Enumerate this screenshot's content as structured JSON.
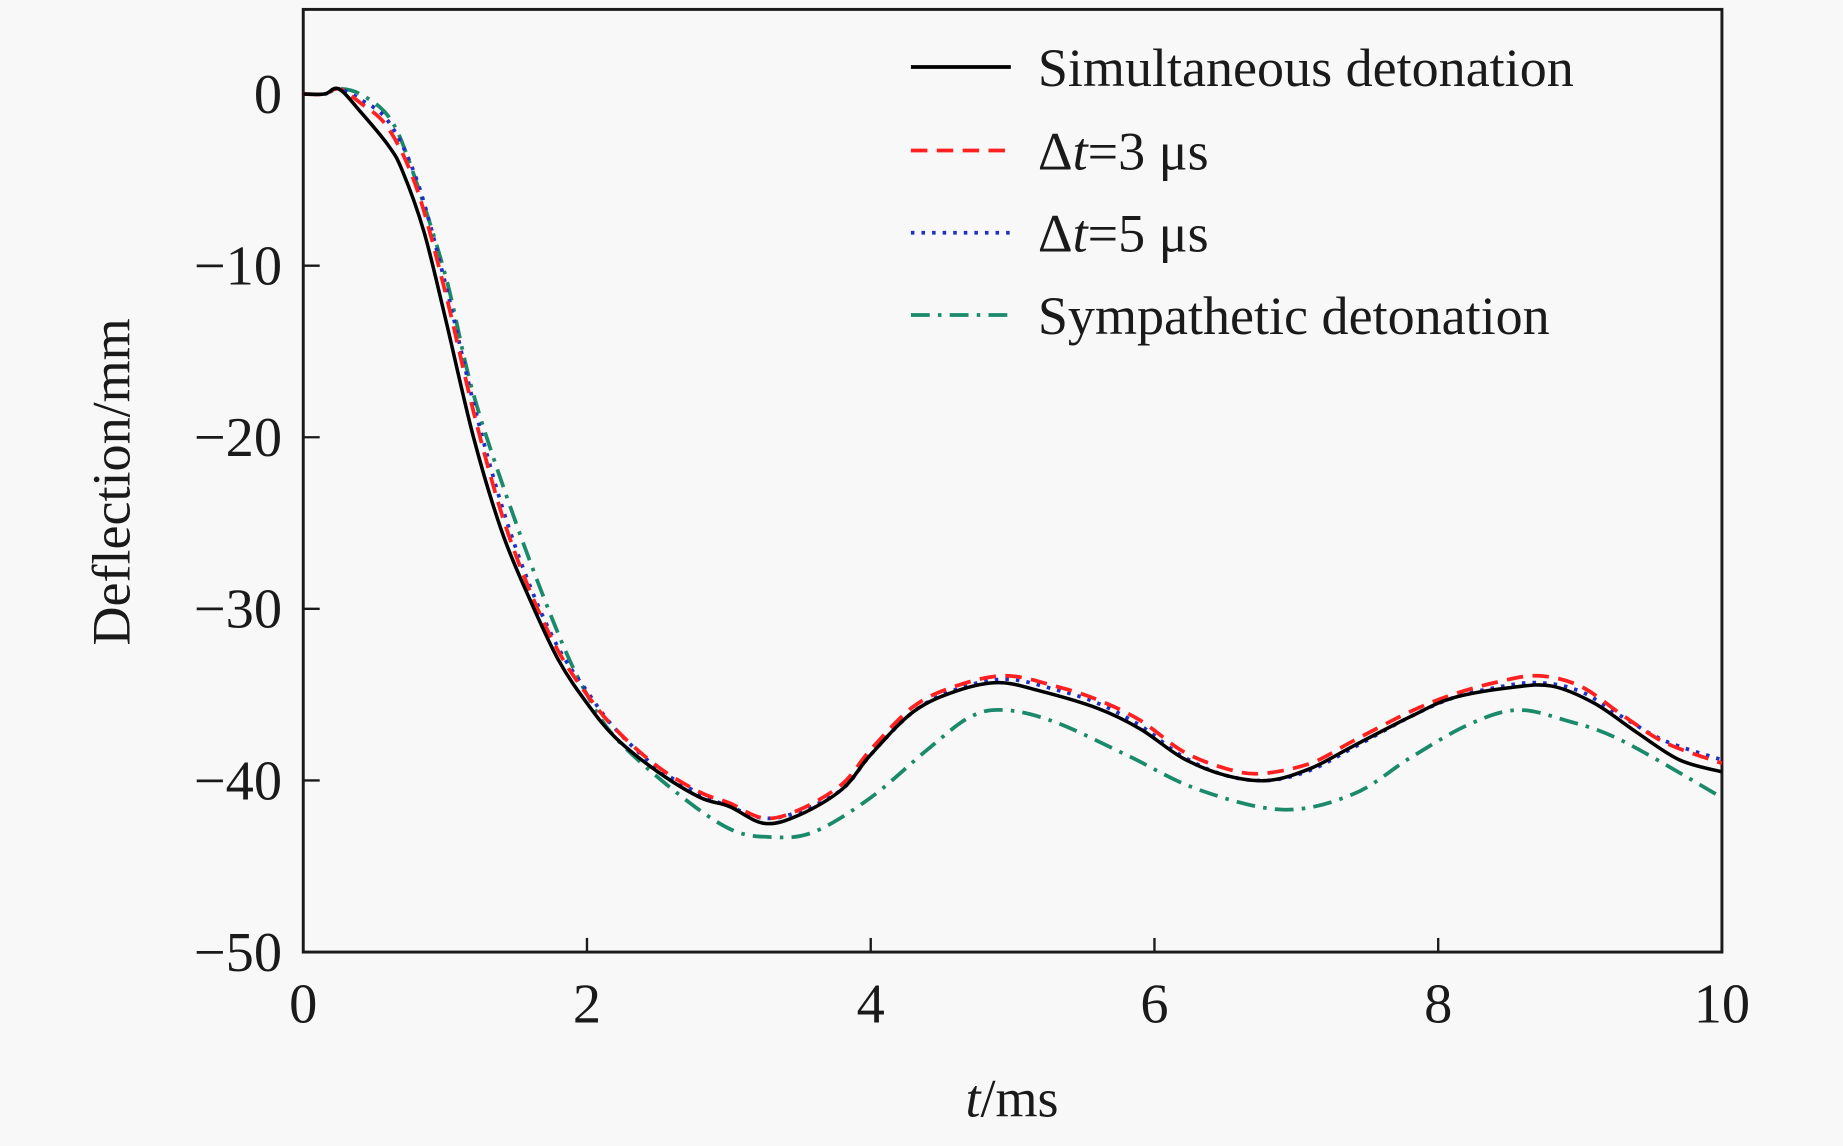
{
  "chart_data": {
    "type": "line",
    "xlabel_italic": "t",
    "xlabel_rest": "/ms",
    "ylabel": "Deflection/mm",
    "xlim": [
      0,
      10
    ],
    "ylim": [
      -50,
      5
    ],
    "xticks": [
      "0",
      "2",
      "4",
      "6",
      "8",
      "10"
    ],
    "yticks": [
      "0",
      "−10",
      "−20",
      "−30",
      "−40",
      "−50"
    ],
    "grid": false,
    "legend_position": "top-right",
    "series": [
      {
        "name": "Simultaneous detonation",
        "legend_parts": [
          "Simultaneous detonation"
        ],
        "color": "#000000",
        "style": "solid",
        "x": [
          0,
          0.15,
          0.25,
          0.4,
          0.6,
          0.7,
          0.85,
          1.0,
          1.2,
          1.4,
          1.6,
          1.8,
          2.0,
          2.2,
          2.5,
          2.8,
          3.0,
          3.25,
          3.5,
          3.8,
          4.0,
          4.3,
          4.6,
          4.9,
          5.2,
          5.6,
          5.9,
          6.2,
          6.5,
          6.8,
          7.1,
          7.4,
          7.8,
          8.1,
          8.5,
          8.8,
          9.1,
          9.4,
          9.7,
          10
        ],
        "y": [
          0,
          0,
          0.3,
          -1,
          -3,
          -4.5,
          -8,
          -13,
          -20,
          -25.5,
          -29.5,
          -33,
          -35.5,
          -37.5,
          -39.5,
          -41,
          -41.5,
          -42.5,
          -42,
          -40.5,
          -38.5,
          -36,
          -34.8,
          -34.3,
          -34.8,
          -35.8,
          -37,
          -38.7,
          -39.7,
          -40,
          -39.3,
          -38,
          -36.3,
          -35.2,
          -34.6,
          -34.5,
          -35.5,
          -37.2,
          -38.8,
          -39.5
        ]
      },
      {
        "name": "Δt=3 μs",
        "legend_parts": [
          "Δ",
          "t",
          "=3 μs"
        ],
        "color": "#ff2020",
        "style": "dashed",
        "x": [
          0,
          0.15,
          0.25,
          0.4,
          0.6,
          0.8,
          1.0,
          1.2,
          1.4,
          1.6,
          1.8,
          2.0,
          2.2,
          2.5,
          2.8,
          3.0,
          3.25,
          3.5,
          3.8,
          4.0,
          4.3,
          4.6,
          4.95,
          5.3,
          5.6,
          5.9,
          6.2,
          6.5,
          6.75,
          7.1,
          7.4,
          7.8,
          8.1,
          8.4,
          8.7,
          9.0,
          9.3,
          9.6,
          10
        ],
        "y": [
          0,
          0,
          0.3,
          -0.5,
          -2,
          -5.5,
          -11.5,
          -18.5,
          -24.5,
          -29,
          -32.5,
          -35,
          -37,
          -39.2,
          -40.7,
          -41.3,
          -42.2,
          -41.7,
          -40.2,
          -38.2,
          -35.7,
          -34.5,
          -33.9,
          -34.5,
          -35.3,
          -36.5,
          -38.3,
          -39.3,
          -39.6,
          -39,
          -37.7,
          -36,
          -35,
          -34.3,
          -33.9,
          -34.5,
          -36.2,
          -37.8,
          -39
        ]
      },
      {
        "name": "Δt=5 μs",
        "legend_parts": [
          "Δ",
          "t",
          "=5 μs"
        ],
        "color": "#2030c0",
        "style": "dotted",
        "x": [
          0,
          0.15,
          0.25,
          0.4,
          0.6,
          0.8,
          1.0,
          1.2,
          1.4,
          1.6,
          1.8,
          2.0,
          2.2,
          2.5,
          2.8,
          3.0,
          3.25,
          3.5,
          3.8,
          4.0,
          4.3,
          4.6,
          4.95,
          5.3,
          5.6,
          5.9,
          6.2,
          6.5,
          6.8,
          7.1,
          7.4,
          7.8,
          8.1,
          8.4,
          8.7,
          9.0,
          9.3,
          9.6,
          10
        ],
        "y": [
          0,
          0,
          0.3,
          -0.3,
          -1.6,
          -5,
          -11,
          -18,
          -24,
          -28.7,
          -32.3,
          -34.8,
          -37,
          -39.3,
          -40.8,
          -41.5,
          -42.2,
          -41.8,
          -40.5,
          -38.5,
          -36,
          -34.7,
          -34.1,
          -34.7,
          -35.5,
          -36.8,
          -38.6,
          -39.7,
          -40,
          -39.4,
          -38.1,
          -36.3,
          -35.2,
          -34.6,
          -34.3,
          -34.8,
          -36.3,
          -37.7,
          -38.8
        ]
      },
      {
        "name": "Sympathetic detonation",
        "legend_parts": [
          "Sympathetic detonation"
        ],
        "color": "#1a8a6a",
        "style": "dashdot",
        "x": [
          0,
          0.15,
          0.25,
          0.4,
          0.6,
          0.75,
          1.0,
          1.2,
          1.5,
          1.8,
          2.0,
          2.2,
          2.6,
          3.0,
          3.3,
          3.6,
          4.0,
          4.4,
          4.7,
          4.95,
          5.3,
          5.8,
          6.3,
          6.9,
          7.4,
          7.8,
          8.2,
          8.55,
          8.9,
          9.3,
          10
        ],
        "y": [
          0,
          0,
          0.3,
          0,
          -1.3,
          -4,
          -10.5,
          -17.5,
          -25,
          -31.5,
          -35,
          -37.5,
          -40.5,
          -42.8,
          -43.3,
          -43,
          -41,
          -38.2,
          -36.3,
          -35.9,
          -36.6,
          -38.5,
          -40.5,
          -41.7,
          -40.8,
          -38.7,
          -36.8,
          -35.9,
          -36.5,
          -37.7,
          -41
        ]
      }
    ]
  }
}
